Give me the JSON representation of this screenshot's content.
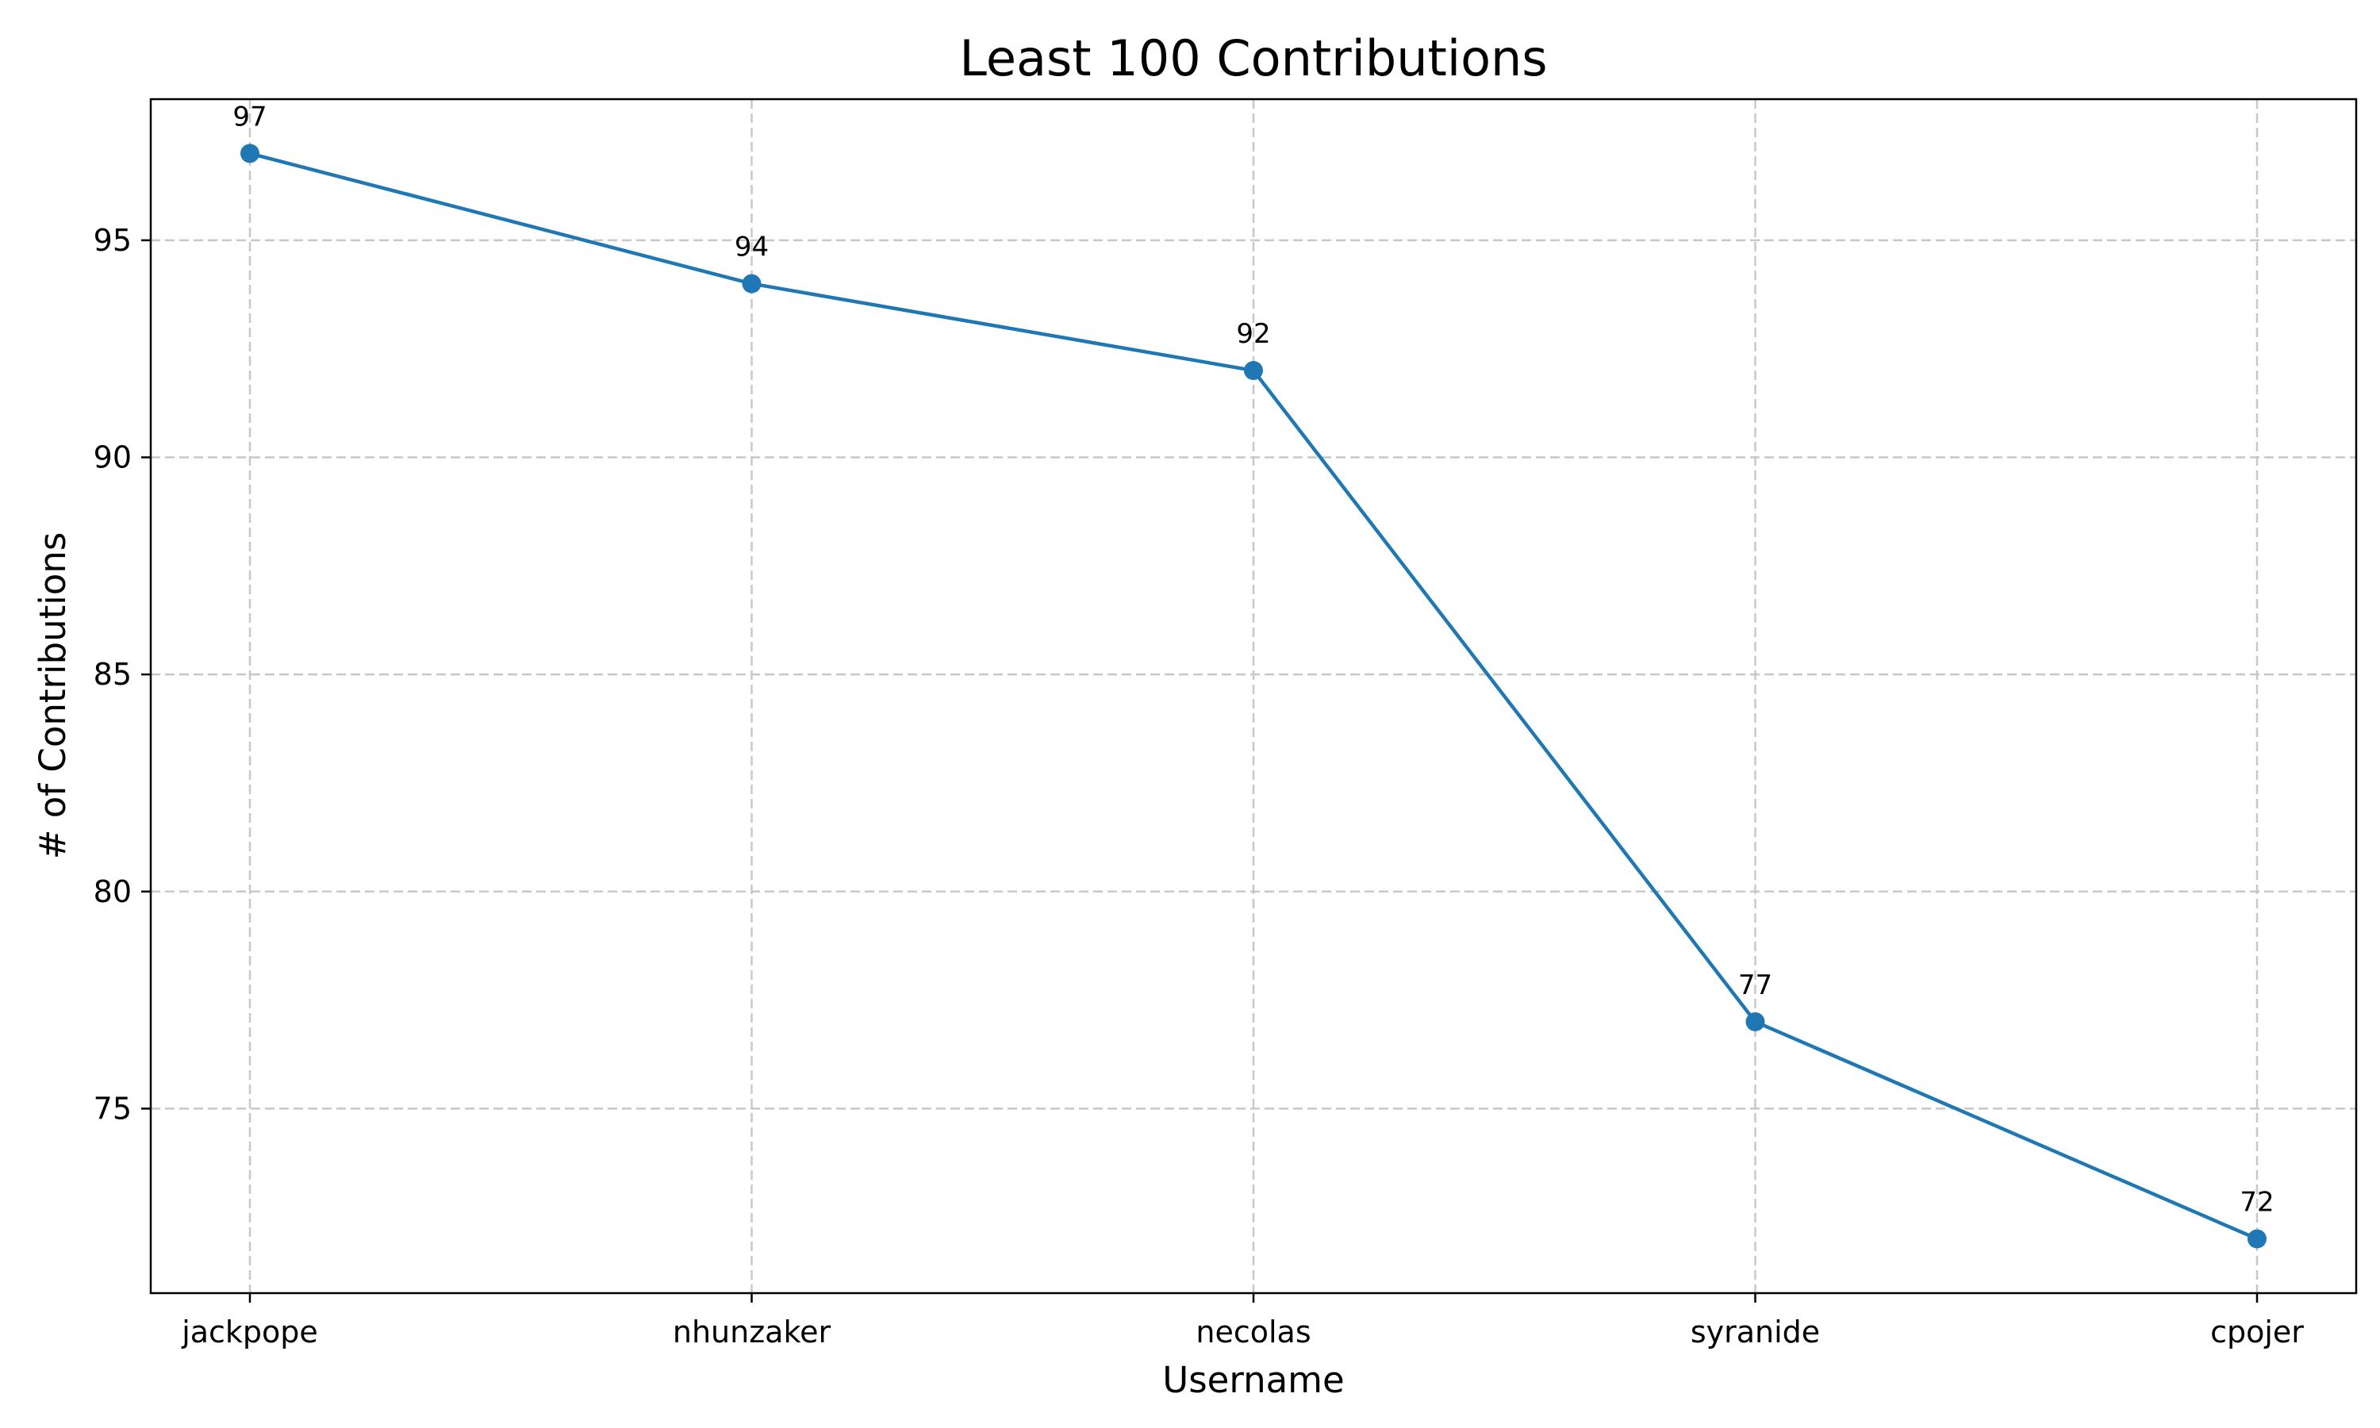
{
  "chart_data": {
    "type": "line",
    "title": "Least 100 Contributions",
    "xlabel": "Username",
    "ylabel": "# of Contributions",
    "categories": [
      "jackpope",
      "nhunzaker",
      "necolas",
      "syranide",
      "cpojer"
    ],
    "series": [
      {
        "values": [
          97,
          94,
          92,
          77,
          72
        ]
      }
    ],
    "data_labels": [
      "97",
      "94",
      "92",
      "77",
      "72"
    ],
    "ylim": [
      70.75,
      98.25
    ],
    "yticks": [
      75,
      80,
      85,
      90,
      95
    ],
    "ytick_labels": [
      "75",
      "80",
      "85",
      "90",
      "95"
    ],
    "grid": true,
    "line_color": "#1f77b4",
    "marker": "circle"
  }
}
